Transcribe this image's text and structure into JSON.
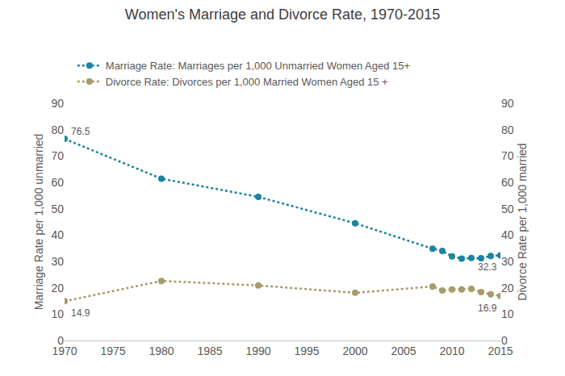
{
  "chart_data": {
    "type": "line",
    "title": "Women's Marriage and Divorce Rate, 1970-2015",
    "y_label": "Marriage Rate per 1,000 unmarried",
    "y2_label": "Divorce Rate per 1,000 married",
    "x": [
      1970,
      1980,
      1990,
      2000,
      2008,
      2009,
      2010,
      2011,
      2012,
      2013,
      2014,
      2015
    ],
    "series": [
      {
        "name": "Marriage Rate: Marriages per 1,000 Unmarried Women Aged 15+",
        "color": "#1b84a0",
        "marker": "circle",
        "line_style": "dotted",
        "axis": "y",
        "values": [
          76.5,
          61.4,
          54.5,
          44.5,
          34.8,
          34.0,
          31.9,
          31.1,
          31.3,
          31.2,
          32.1,
          32.3
        ]
      },
      {
        "name": "Divorce Rate: Divorces per 1,000 Married Women Aged 15 +",
        "color": "#a89b6a",
        "marker": "circle",
        "line_style": "dotted",
        "axis": "y2",
        "values": [
          14.9,
          22.6,
          20.9,
          18.1,
          20.5,
          19.0,
          19.4,
          19.4,
          19.6,
          18.4,
          17.5,
          16.9
        ]
      }
    ],
    "annotations": [
      {
        "text": "76.5",
        "x": 1970,
        "y": 76.5,
        "axis": "y"
      },
      {
        "text": "14.9",
        "x": 1970,
        "y": 14.9,
        "axis": "y2"
      },
      {
        "text": "32.3",
        "x": 2015,
        "y": 32.3,
        "axis": "y"
      },
      {
        "text": "16.9",
        "x": 2015,
        "y": 16.9,
        "axis": "y2"
      }
    ],
    "xlim": [
      1970,
      2015
    ],
    "xticks": [
      1970,
      1975,
      1980,
      1985,
      1990,
      1995,
      2000,
      2005,
      2010,
      2015
    ],
    "ylim": [
      0,
      90
    ],
    "yticks": [
      0,
      10,
      20,
      30,
      40,
      50,
      60,
      70,
      80,
      90
    ],
    "y2lim": [
      0,
      90
    ],
    "y2ticks": [
      0,
      10,
      20,
      30,
      40,
      50,
      60,
      70,
      80,
      90
    ],
    "grid": false,
    "legend": "top"
  }
}
